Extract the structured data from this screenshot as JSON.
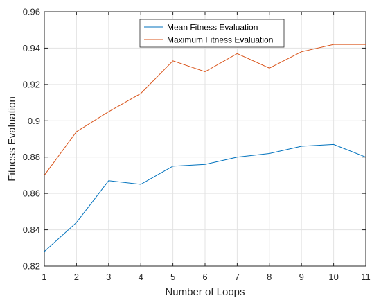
{
  "chart_data": {
    "type": "line",
    "title": "",
    "xlabel": "Number of Loops",
    "ylabel": "Fitness Evaluation",
    "x": [
      1,
      2,
      3,
      4,
      5,
      6,
      7,
      8,
      9,
      10,
      11
    ],
    "xlim": [
      1,
      11
    ],
    "ylim": [
      0.82,
      0.96
    ],
    "xticks": [
      1,
      2,
      3,
      4,
      5,
      6,
      7,
      8,
      9,
      10,
      11
    ],
    "yticks": [
      0.82,
      0.84,
      0.86,
      0.88,
      0.9,
      0.92,
      0.94,
      0.96
    ],
    "ytick_labels": [
      "0.82",
      "0.84",
      "0.86",
      "0.88",
      "0.9",
      "0.92",
      "0.94",
      "0.96"
    ],
    "grid": true,
    "legend_position": "top-center",
    "series": [
      {
        "name": "Mean Fitness Evaluation",
        "color": "#0072BD",
        "values": [
          0.828,
          0.844,
          0.867,
          0.865,
          0.875,
          0.876,
          0.88,
          0.882,
          0.886,
          0.887,
          0.88
        ]
      },
      {
        "name": "Maximum Fitness Evaluation",
        "color": "#D95319",
        "values": [
          0.87,
          0.894,
          0.905,
          0.915,
          0.933,
          0.927,
          0.937,
          0.929,
          0.938,
          0.942,
          0.942
        ]
      }
    ]
  }
}
